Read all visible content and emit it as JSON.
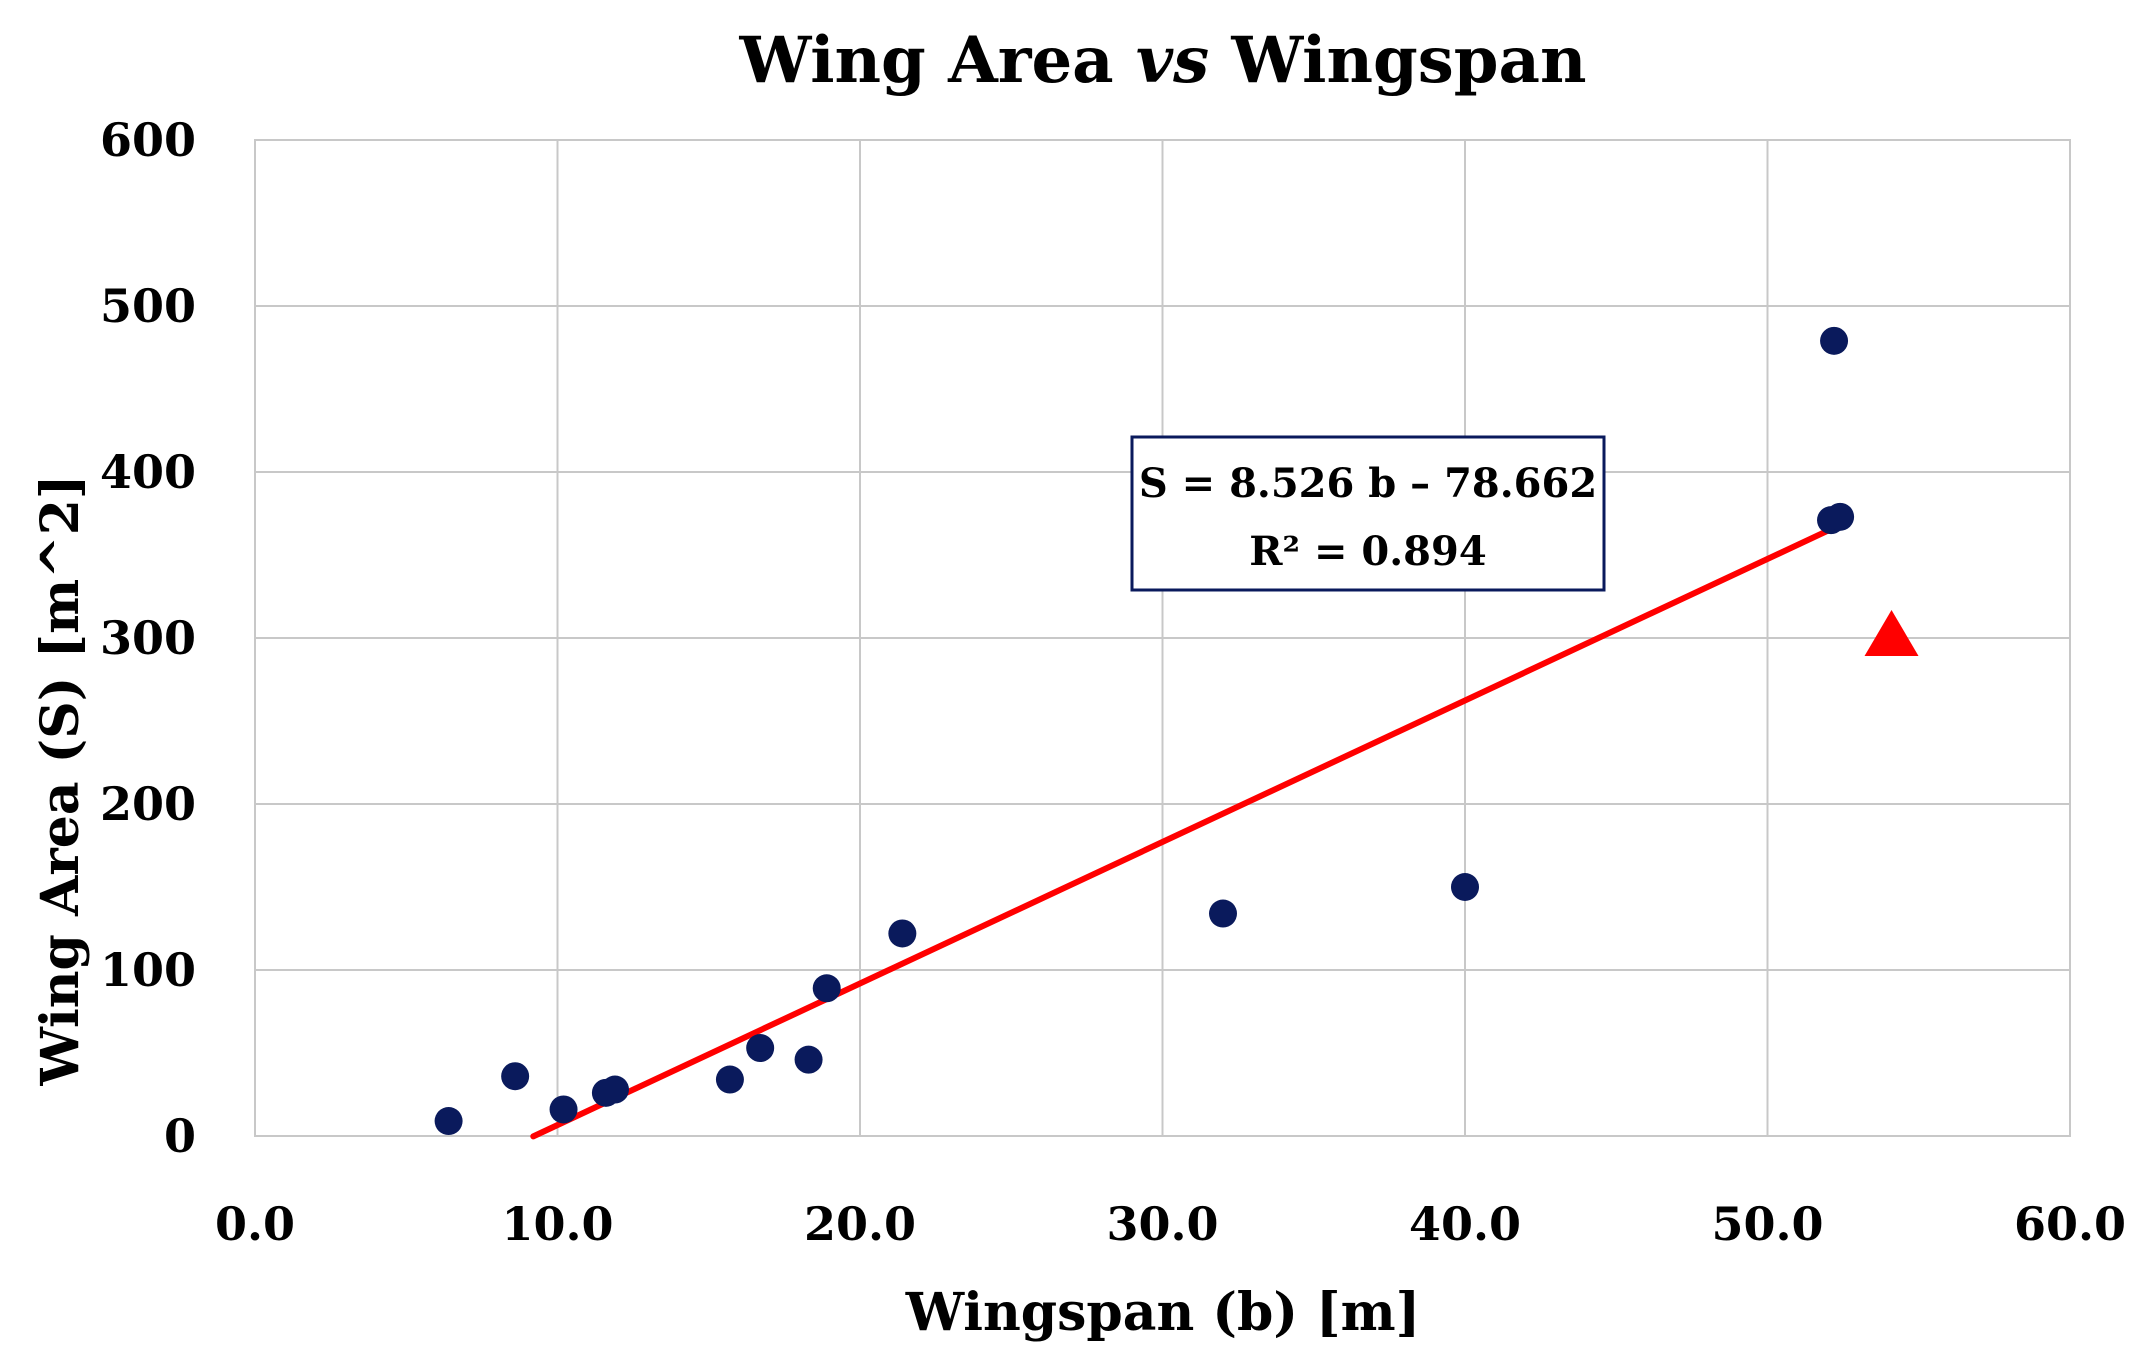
{
  "colors": {
    "points": "#0a1a5c",
    "trendline": "#ff0000",
    "highlight": "#ff0000",
    "grid": "#c8c8c8",
    "equation_border": "#0a1a5c"
  },
  "chart_data": {
    "type": "scatter",
    "title": {
      "pre": "Wing Area ",
      "italic": "vs",
      "post": " Wingspan"
    },
    "xlabel": "Wingspan (b) [m]",
    "ylabel": "Wing Area (S) [m^2]",
    "xlim": [
      0,
      60
    ],
    "ylim": [
      0,
      600
    ],
    "x_ticks": [
      0,
      10,
      20,
      30,
      40,
      50,
      60
    ],
    "x_tick_labels": [
      "0.0",
      "10.0",
      "20.0",
      "30.0",
      "40.0",
      "50.0",
      "60.0"
    ],
    "y_ticks": [
      0,
      100,
      200,
      300,
      400,
      500,
      600
    ],
    "y_tick_labels": [
      "0",
      "100",
      "200",
      "300",
      "400",
      "500",
      "600"
    ],
    "grid": true,
    "series": [
      {
        "marker": "circle",
        "points": [
          {
            "x": 6.4,
            "y": 9
          },
          {
            "x": 8.6,
            "y": 36
          },
          {
            "x": 10.2,
            "y": 16
          },
          {
            "x": 11.6,
            "y": 26
          },
          {
            "x": 11.9,
            "y": 28
          },
          {
            "x": 15.7,
            "y": 34
          },
          {
            "x": 16.7,
            "y": 53
          },
          {
            "x": 18.3,
            "y": 46
          },
          {
            "x": 18.9,
            "y": 89
          },
          {
            "x": 21.4,
            "y": 122
          },
          {
            "x": 32.0,
            "y": 134
          },
          {
            "x": 40.0,
            "y": 150
          },
          {
            "x": 52.1,
            "y": 371
          },
          {
            "x": 52.4,
            "y": 373
          },
          {
            "x": 52.2,
            "y": 479
          }
        ]
      },
      {
        "marker": "triangle",
        "points": [
          {
            "x": 54.1,
            "y": 303
          }
        ]
      }
    ],
    "trendline": {
      "slope": 8.526,
      "intercept": -78.662,
      "x_range": [
        9.2,
        52.4
      ],
      "equation": "S = 8.526 b – 78.662",
      "r_squared": "R² = 0.894"
    }
  }
}
